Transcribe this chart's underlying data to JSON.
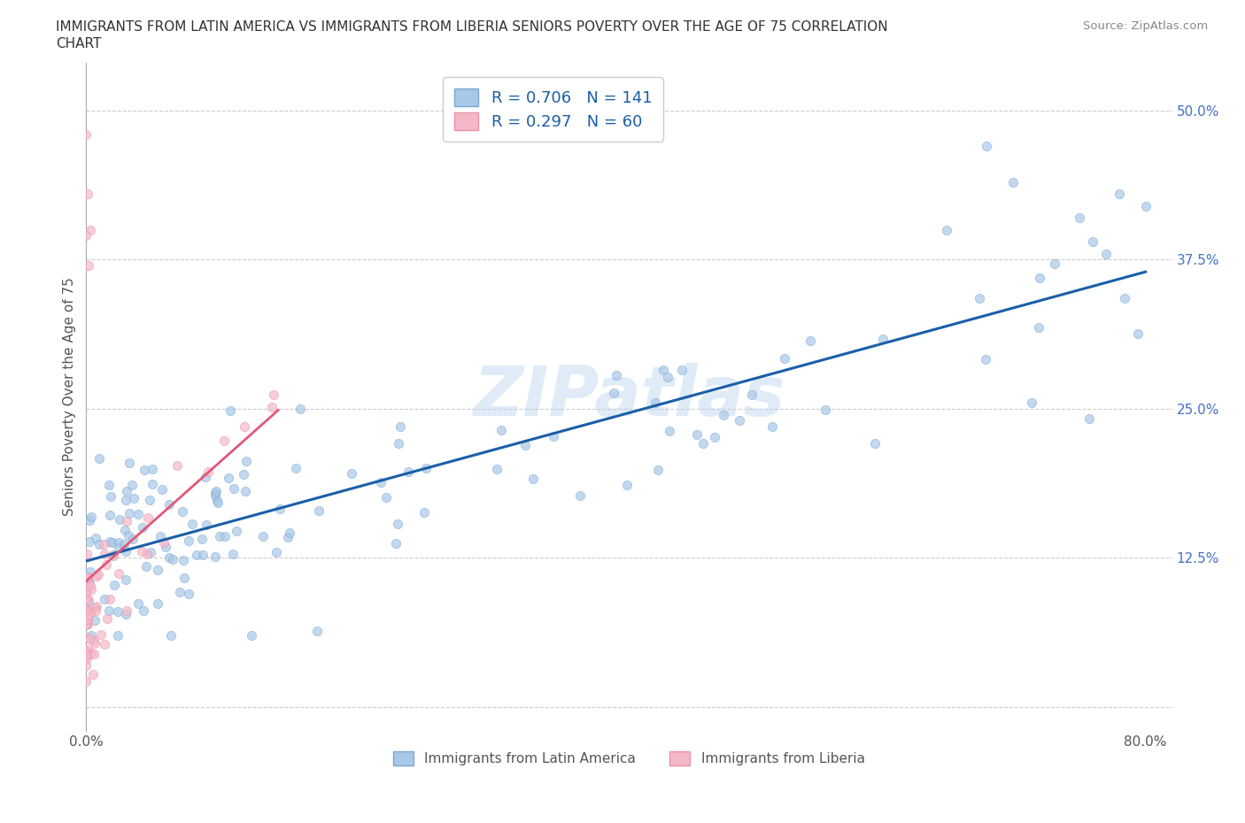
{
  "title_line1": "IMMIGRANTS FROM LATIN AMERICA VS IMMIGRANTS FROM LIBERIA SENIORS POVERTY OVER THE AGE OF 75 CORRELATION",
  "title_line2": "CHART",
  "source": "Source: ZipAtlas.com",
  "ylabel": "Seniors Poverty Over the Age of 75",
  "legend1_label": "R = 0.706   N = 141",
  "legend2_label": "R = 0.297   N = 60",
  "legend_bottom1": "Immigrants from Latin America",
  "legend_bottom2": "Immigrants from Liberia",
  "color_blue_fill": "#a8c8e8",
  "color_blue_edge": "#7aa8d0",
  "color_pink_fill": "#f4b8c8",
  "color_pink_edge": "#e890a8",
  "color_trend_blue": "#1a5fa8",
  "color_trend_pink": "#e05878",
  "watermark": "ZIPatlas",
  "xlim": [
    0.0,
    0.82
  ],
  "ylim": [
    -0.02,
    0.54
  ],
  "xticks": [
    0.0,
    0.1,
    0.2,
    0.3,
    0.4,
    0.5,
    0.6,
    0.7,
    0.8
  ],
  "yticks": [
    0.0,
    0.125,
    0.25,
    0.375,
    0.5
  ],
  "yticklabels_right": [
    "",
    "12.5%",
    "25.0%",
    "37.5%",
    "50.0%"
  ],
  "grid_color": "#cccccc",
  "background_color": "#ffffff",
  "scatter_alpha": 0.7,
  "scatter_size": 55
}
